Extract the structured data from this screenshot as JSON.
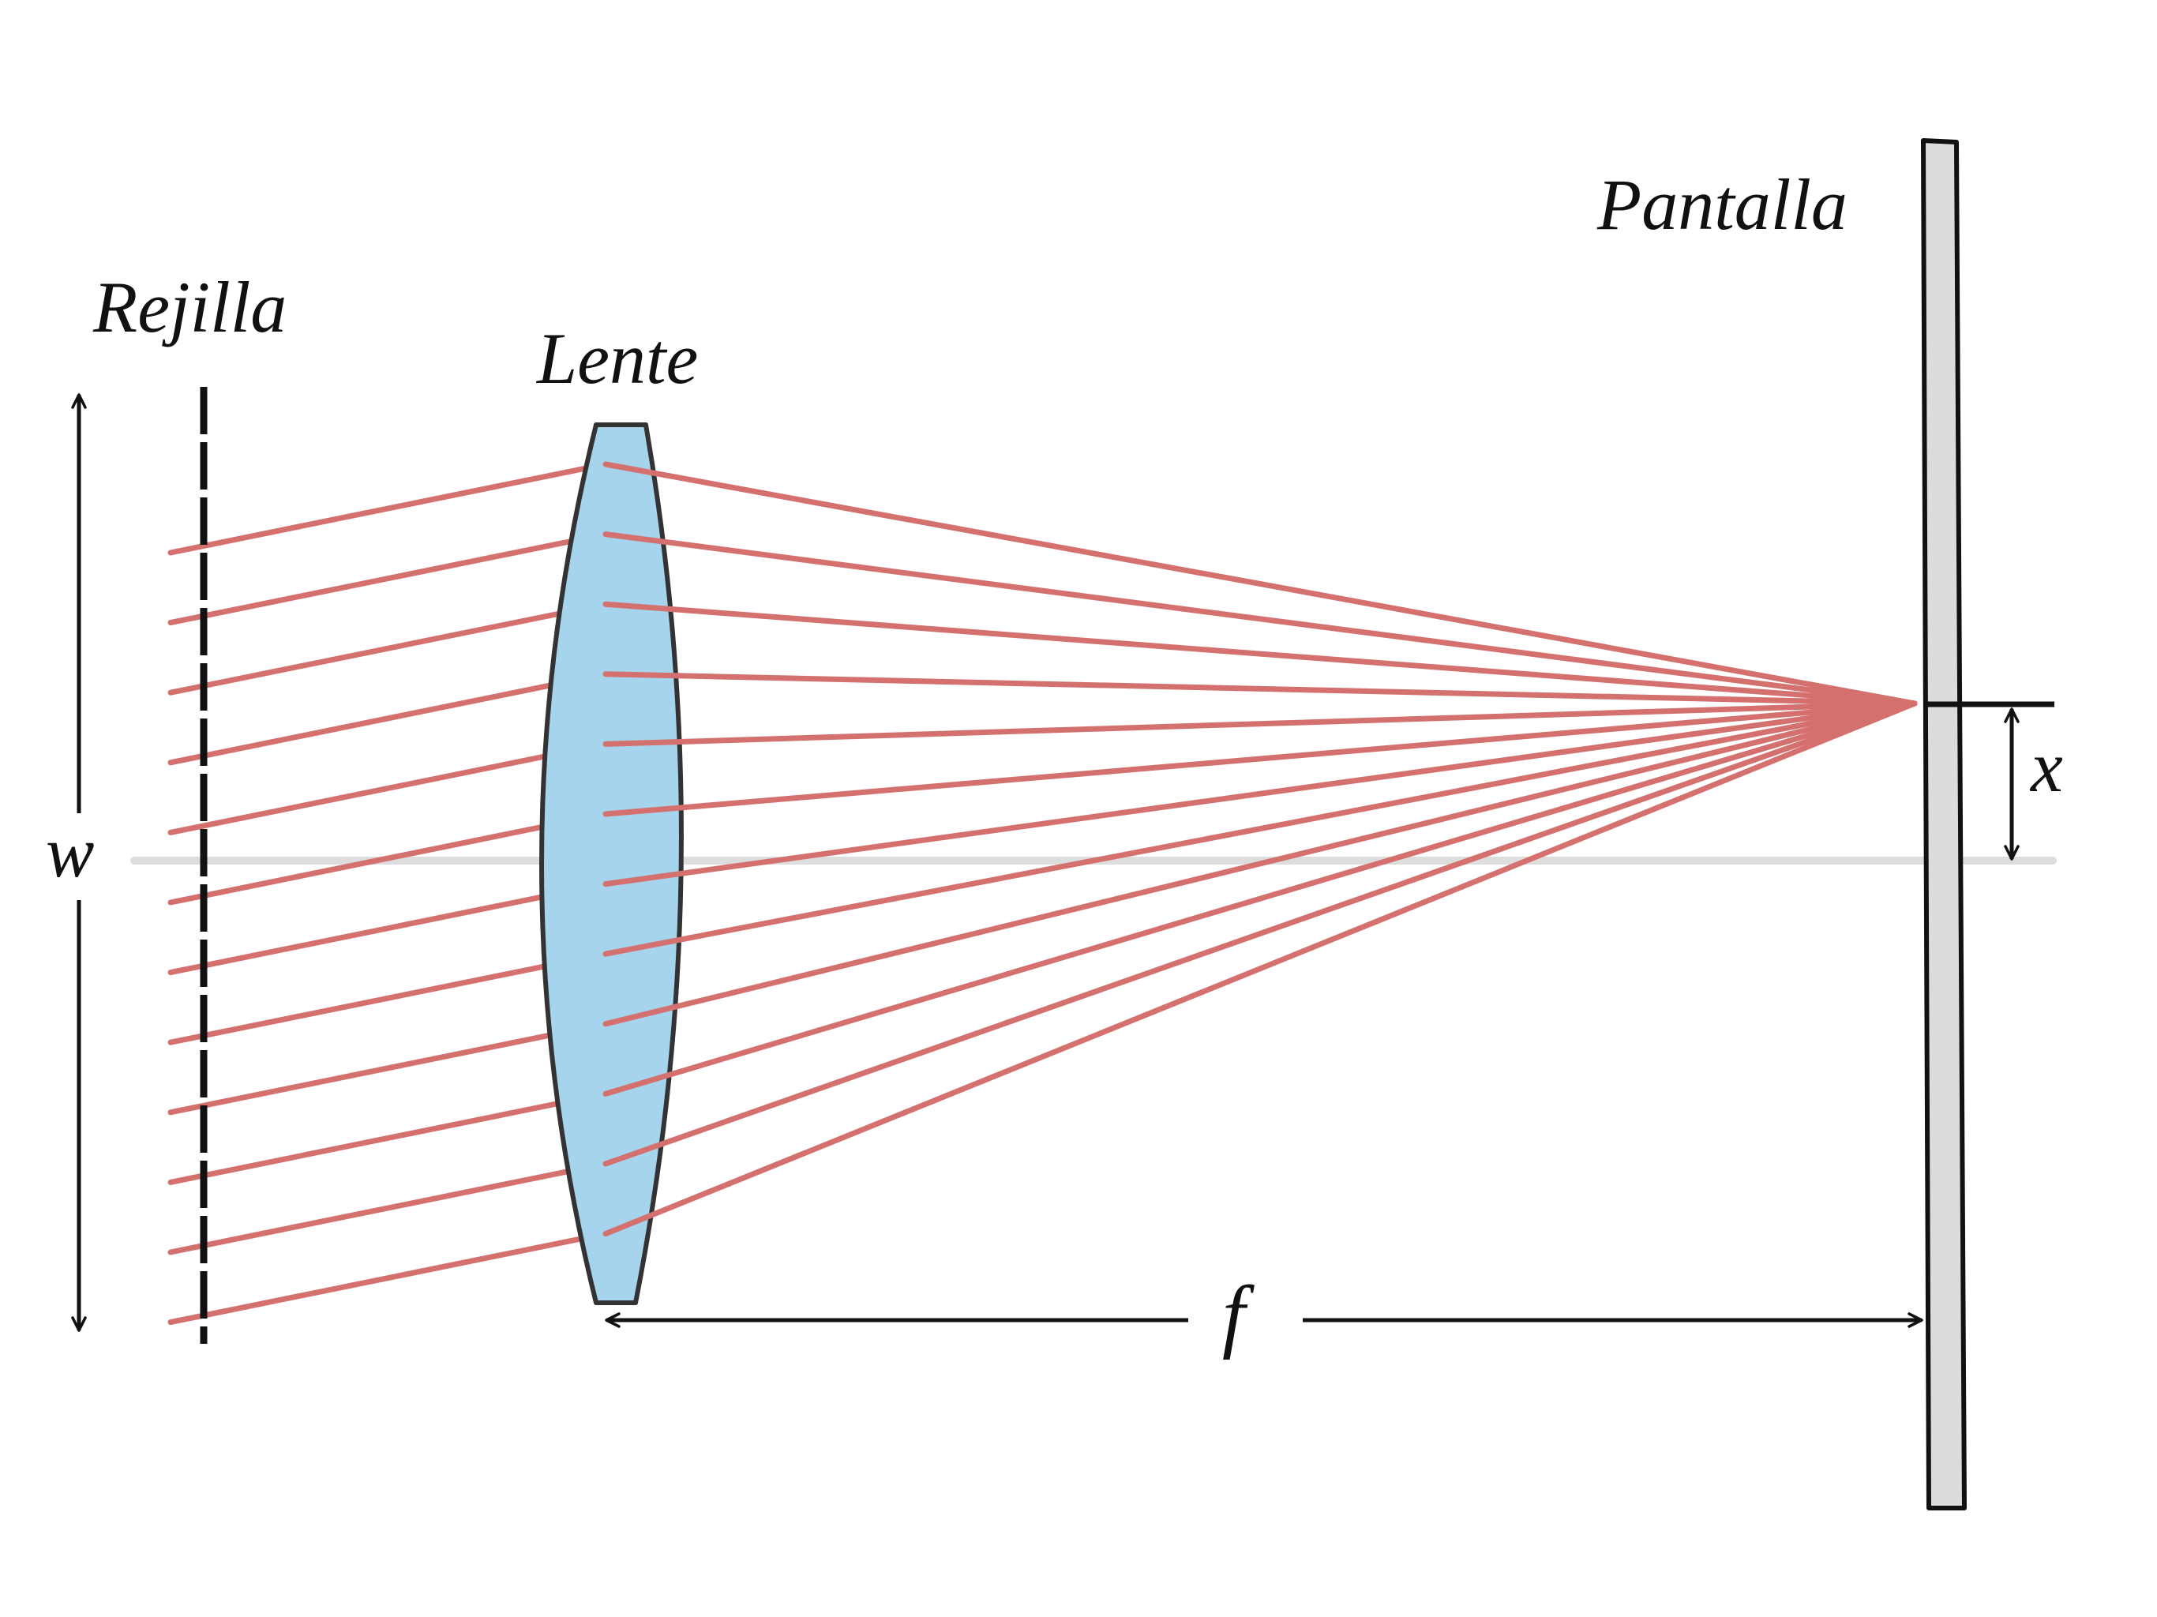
{
  "labels": {
    "grating": "Rejilla",
    "lens": "Lente",
    "screen": "Pantalla",
    "width": "w",
    "focal_length": "f",
    "offset": "x"
  },
  "colors": {
    "ray": "#d4716f",
    "lens_fill": "#a6d4ec",
    "lens_stroke": "#333333",
    "screen_fill": "#dcdcdc",
    "axis": "#dddddd",
    "ink": "#111111"
  },
  "rays": {
    "count": 12
  }
}
